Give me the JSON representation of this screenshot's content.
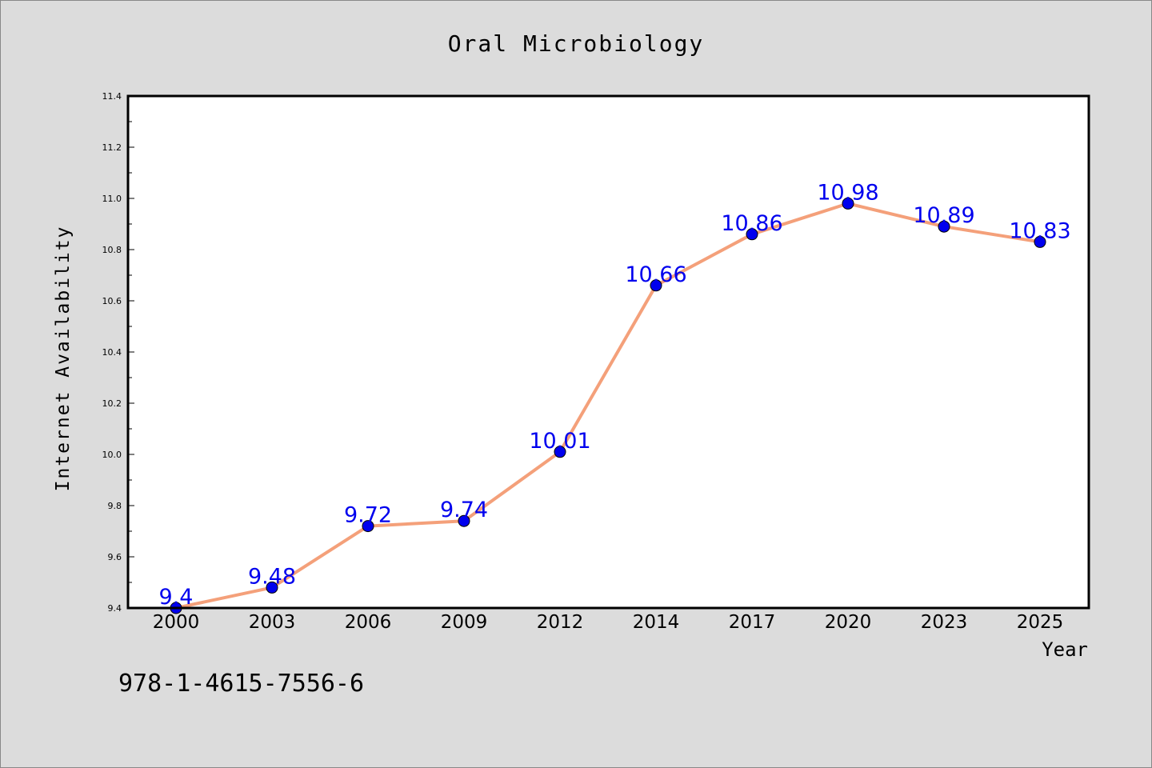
{
  "chart_data": {
    "type": "line",
    "title": "Oral Microbiology",
    "xlabel": "Year",
    "ylabel": "Internet Availability",
    "categories": [
      "2000",
      "2003",
      "2006",
      "2009",
      "2012",
      "2014",
      "2017",
      "2020",
      "2023",
      "2025"
    ],
    "series": [
      {
        "values": [
          9.4,
          9.48,
          9.72,
          9.74,
          10.01,
          10.66,
          10.86,
          10.98,
          10.89,
          10.83
        ],
        "labels": [
          "9.4",
          "9.48",
          "9.72",
          "9.74",
          "10.01",
          "10.66",
          "10.86",
          "10.98",
          "10.89",
          "10.83"
        ],
        "line_color": "#f4a07a",
        "marker_color": "#0000ee",
        "label_color": "#0000ee"
      }
    ],
    "ylim": [
      9.4,
      11.4
    ],
    "yticks": [
      "9.4",
      "9.6",
      "9.8",
      "10.0",
      "10.2",
      "10.4",
      "10.6",
      "10.8",
      "11.0",
      "11.2",
      "11.4"
    ],
    "grid": false,
    "legend": "none"
  },
  "footer_text": "978-1-4615-7556-6",
  "colors": {
    "background": "#dcdcdc",
    "plot_background": "#ffffff",
    "axes": "#000000"
  }
}
